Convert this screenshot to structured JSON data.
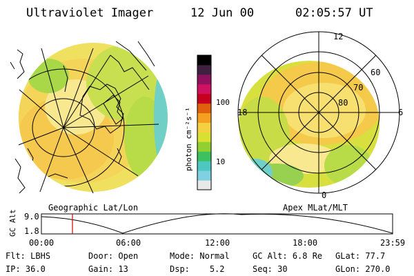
{
  "header": {
    "title": "Ultraviolet Imager",
    "date": "12 Jun 00",
    "time": "02:05:57 UT"
  },
  "geo_panel": {
    "label": "Geographic Lat/Lon"
  },
  "polar_panel": {
    "label": "Apex MLat/MLT",
    "mlt_labels": {
      "top": "12",
      "left": "18",
      "right": "6",
      "bottom": "0"
    },
    "lat_labels": [
      "60",
      "70",
      "80"
    ]
  },
  "colorbar": {
    "unit_label": "photon cm⁻²s⁻¹",
    "scale": "log",
    "ticks": [
      "100",
      "10"
    ],
    "colors": [
      "#e8e8e8",
      "#7fd0e0",
      "#4cc8c0",
      "#3cc060",
      "#90d030",
      "#d8e030",
      "#f5d040",
      "#f5a020",
      "#e06010",
      "#c80020",
      "#d01060",
      "#901060",
      "#402040",
      "#000000"
    ]
  },
  "altitude_plot": {
    "axis_label": "GC Alt",
    "y_ticks": [
      "9.0",
      "1.8"
    ],
    "x_ticks": [
      "00:00",
      "06:00",
      "12:00",
      "18:00",
      "23:59"
    ],
    "current_time_marker": "02:05:57"
  },
  "status": {
    "row1": [
      {
        "key": "Flt:",
        "value": "LBHS"
      },
      {
        "key": "Door:",
        "value": "Open"
      },
      {
        "key": "Mode:",
        "value": "Normal"
      },
      {
        "key": "GC Alt:",
        "value": "6.8 Re"
      },
      {
        "key": "GLat:",
        "value": "77.7"
      }
    ],
    "row2": [
      {
        "key": "IP:",
        "value": "36.0"
      },
      {
        "key": "Gain:",
        "value": "13"
      },
      {
        "key": "Dsp:",
        "value": "5.2"
      },
      {
        "key": "Seq:",
        "value": "30"
      },
      {
        "key": "GLon:",
        "value": "270.0"
      }
    ]
  }
}
